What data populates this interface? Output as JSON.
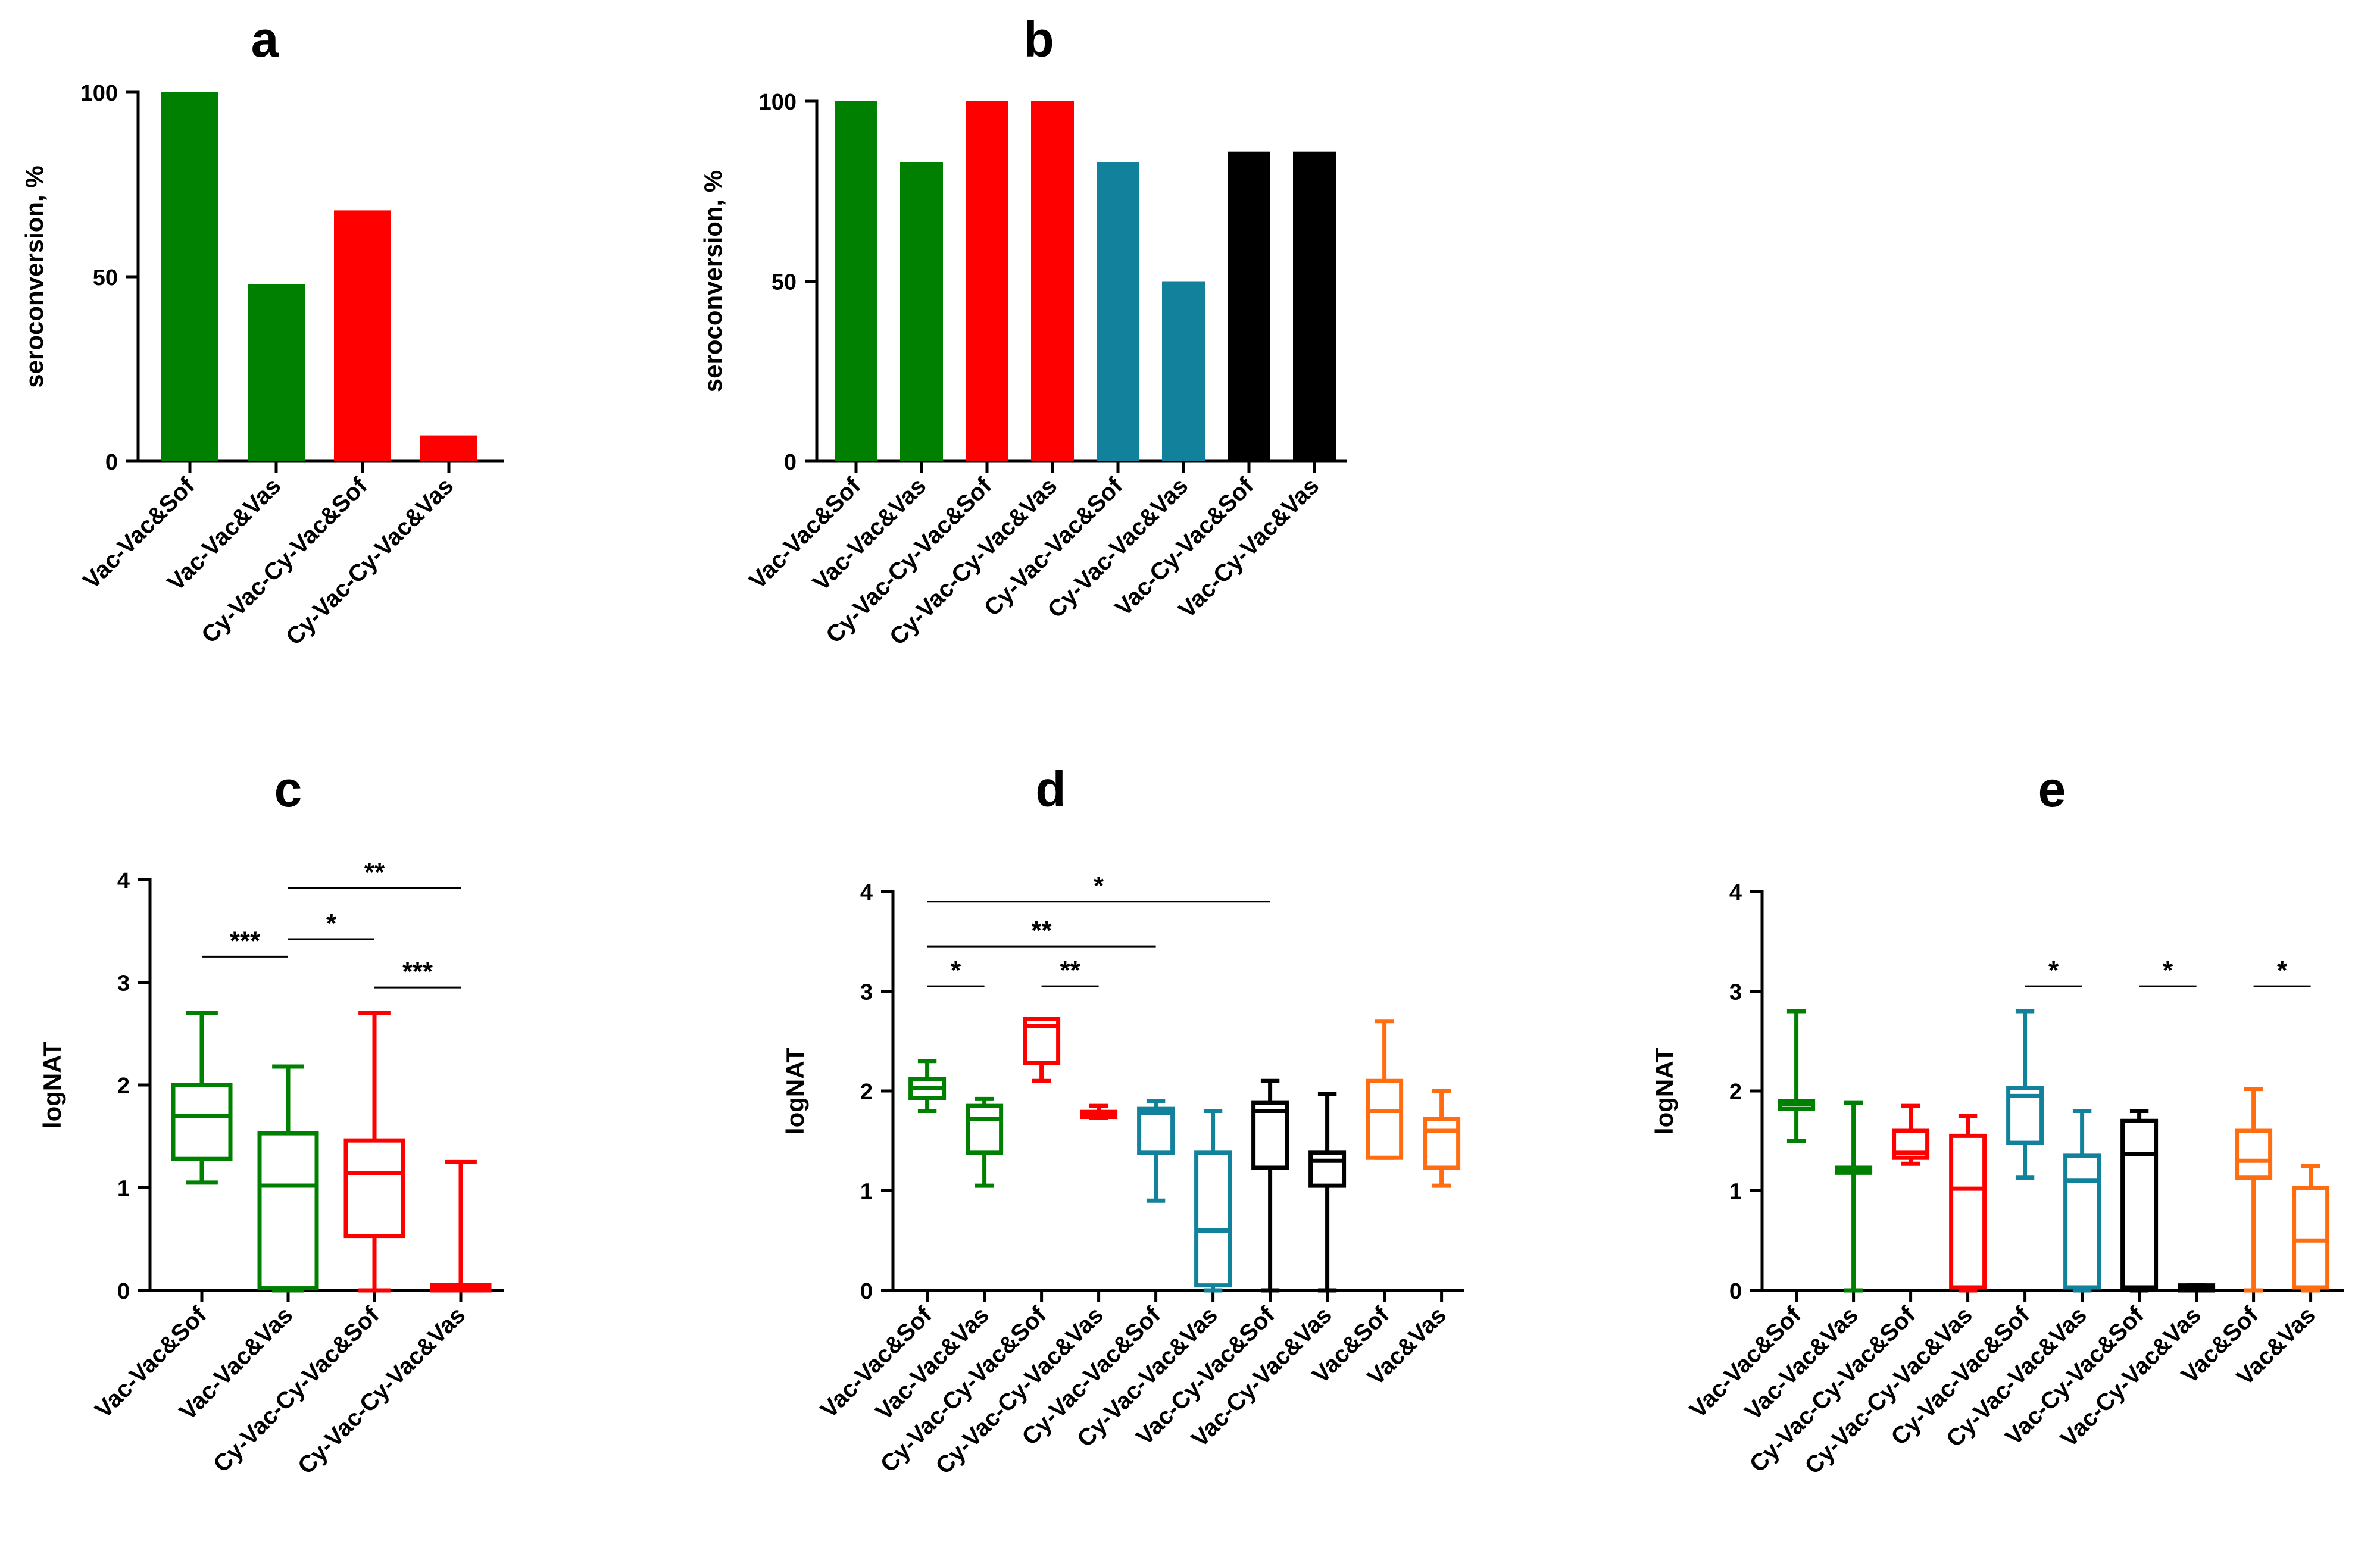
{
  "colors": {
    "green": "#008000",
    "red": "#ff0000",
    "teal": "#12819b",
    "black": "#000000",
    "orange": "#ff6d10"
  },
  "chart_data": [
    {
      "id": "a",
      "type": "bar",
      "panel_label": "a",
      "title": "",
      "xlabel": "",
      "ylabel": "seroconversion, %",
      "ylim": [
        0,
        100
      ],
      "yticks": [
        "0",
        "50",
        "100"
      ],
      "categories": [
        "Vac-Vac&Sof",
        "Vac-Vac&Vas",
        "Cy-Vac-Cy-Vac&Sof",
        "Cy-Vac-Cy-Vac&Vas"
      ],
      "values": [
        100,
        48,
        68,
        7
      ],
      "colors": [
        "green",
        "green",
        "red",
        "red"
      ],
      "grid": false
    },
    {
      "id": "b",
      "type": "bar",
      "panel_label": "b",
      "title": "",
      "xlabel": "",
      "ylabel": "seroconversion, %",
      "ylim": [
        0,
        100
      ],
      "yticks": [
        "0",
        "50",
        "100"
      ],
      "categories": [
        "Vac-Vac&Sof",
        "Vac-Vac&Vas",
        "Cy-Vac-Cy-Vac&Sof",
        "Cy-Vac-Cy-Vac&Vas",
        "Cy-Vac-Vac&Sof",
        "Cy-Vac-Vac&Vas",
        "Vac-Cy-Vac&Sof",
        "Vac-Cy-Vac&Vas"
      ],
      "values": [
        100,
        83,
        100,
        100,
        83,
        50,
        86,
        86
      ],
      "colors": [
        "green",
        "green",
        "red",
        "red",
        "teal",
        "teal",
        "black",
        "black"
      ],
      "grid": false
    },
    {
      "id": "c",
      "type": "box",
      "panel_label": "c",
      "title": "",
      "xlabel": "",
      "ylabel": "logNAT",
      "ylim": [
        0,
        4
      ],
      "yticks": [
        "0",
        "1",
        "2",
        "3",
        "4"
      ],
      "categories": [
        "Vac-Vac&Sof",
        "Vac-Vac&Vas",
        "Cy-Vac-Cy-Vac&Sof",
        "Cy-Vac-Cy-Vac&Vas"
      ],
      "colors": [
        "green",
        "green",
        "red",
        "red"
      ],
      "boxes": [
        {
          "min": 1.05,
          "q1": 1.28,
          "median": 1.7,
          "q3": 2.0,
          "max": 2.7
        },
        {
          "min": 0.0,
          "q1": 0.02,
          "median": 1.02,
          "q3": 1.53,
          "max": 2.18
        },
        {
          "min": 0.0,
          "q1": 0.53,
          "median": 1.14,
          "q3": 1.46,
          "max": 2.7
        },
        {
          "min": 0.0,
          "q1": 0.0,
          "median": 0.02,
          "q3": 0.05,
          "max": 1.25
        }
      ],
      "significance": [
        {
          "from": 0,
          "to": 1,
          "level": 3.25,
          "label": "***"
        },
        {
          "from": 1,
          "to": 2,
          "level": 3.42,
          "label": "*"
        },
        {
          "from": 1,
          "to": 3,
          "level": 3.92,
          "label": "**"
        },
        {
          "from": 2,
          "to": 3,
          "level": 2.95,
          "label": "***"
        }
      ],
      "grid": false
    },
    {
      "id": "d",
      "type": "box",
      "panel_label": "d",
      "title": "",
      "xlabel": "",
      "ylabel": "logNAT",
      "ylim": [
        0,
        4
      ],
      "yticks": [
        "0",
        "1",
        "2",
        "3",
        "4"
      ],
      "categories": [
        "Vac-Vac&Sof",
        "Vac-Vac&Vas",
        "Cy-Vac-Cy-Vac&Sof",
        "Cy-Vac-Cy-Vac&Vas",
        "Cy-Vac-Vac&Sof",
        "Cy-Vac-Vac&Vas",
        "Vac-Cy-Vac&Sof",
        "Vac-Cy-Vac&Vas",
        "Vac&Sof",
        "Vac&Vas"
      ],
      "colors": [
        "green",
        "green",
        "red",
        "red",
        "teal",
        "teal",
        "black",
        "black",
        "orange",
        "orange"
      ],
      "boxes": [
        {
          "min": 1.8,
          "q1": 1.93,
          "median": 2.03,
          "q3": 2.12,
          "max": 2.3
        },
        {
          "min": 1.05,
          "q1": 1.38,
          "median": 1.72,
          "q3": 1.85,
          "max": 1.92
        },
        {
          "min": 2.1,
          "q1": 2.28,
          "median": 2.65,
          "q3": 2.72,
          "max": 2.72
        },
        {
          "min": 1.73,
          "q1": 1.74,
          "median": 1.77,
          "q3": 1.79,
          "max": 1.85
        },
        {
          "min": 0.9,
          "q1": 1.38,
          "median": 1.78,
          "q3": 1.82,
          "max": 1.9
        },
        {
          "min": 0.0,
          "q1": 0.05,
          "median": 0.6,
          "q3": 1.38,
          "max": 1.8
        },
        {
          "min": 0.0,
          "q1": 1.23,
          "median": 1.8,
          "q3": 1.88,
          "max": 2.1
        },
        {
          "min": 0.0,
          "q1": 1.05,
          "median": 1.3,
          "q3": 1.38,
          "max": 1.97
        },
        {
          "min": 1.33,
          "q1": 1.33,
          "median": 1.8,
          "q3": 2.1,
          "max": 2.7
        },
        {
          "min": 1.05,
          "q1": 1.23,
          "median": 1.6,
          "q3": 1.72,
          "max": 2.0
        }
      ],
      "significance": [
        {
          "from": 0,
          "to": 1,
          "level": 3.05,
          "label": "*"
        },
        {
          "from": 0,
          "to": 4,
          "level": 3.45,
          "label": "**"
        },
        {
          "from": 0,
          "to": 6,
          "level": 3.9,
          "label": "*"
        },
        {
          "from": 2,
          "to": 3,
          "level": 3.05,
          "label": "**"
        }
      ],
      "grid": false
    },
    {
      "id": "e",
      "type": "box",
      "panel_label": "e",
      "title": "",
      "xlabel": "",
      "ylabel": "logNAT",
      "ylim": [
        0,
        4
      ],
      "yticks": [
        "0",
        "1",
        "2",
        "3",
        "4"
      ],
      "categories": [
        "Vac-Vac&Sof",
        "Vac-Vac&Vas",
        "Cy-Vac-Cy-Vac&Sof",
        "Cy-Vac-Cy-Vac&Vas",
        "Cy-Vac-Vac&Sof",
        "Cy-Vac-Vac&Vas",
        "Vac-Cy-Vac&Sof",
        "Vac-Cy-Vac&Vas",
        "Vac&Sof",
        "Vac&Vas"
      ],
      "colors": [
        "green",
        "green",
        "red",
        "red",
        "teal",
        "teal",
        "black",
        "black",
        "orange",
        "orange"
      ],
      "boxes": [
        {
          "min": 1.5,
          "q1": 1.82,
          "median": 1.87,
          "q3": 1.9,
          "max": 2.8
        },
        {
          "min": 0.0,
          "q1": 1.18,
          "median": 1.2,
          "q3": 1.23,
          "max": 1.88
        },
        {
          "min": 1.27,
          "q1": 1.33,
          "median": 1.38,
          "q3": 1.6,
          "max": 1.85
        },
        {
          "min": 0.0,
          "q1": 0.03,
          "median": 1.02,
          "q3": 1.55,
          "max": 1.75
        },
        {
          "min": 1.13,
          "q1": 1.48,
          "median": 1.95,
          "q3": 2.03,
          "max": 2.8
        },
        {
          "min": 0.0,
          "q1": 0.03,
          "median": 1.1,
          "q3": 1.35,
          "max": 1.8
        },
        {
          "min": 0.0,
          "q1": 0.03,
          "median": 1.37,
          "q3": 1.7,
          "max": 1.8
        },
        {
          "min": 0.0,
          "q1": 0.0,
          "median": 0.02,
          "q3": 0.05,
          "max": 0.05
        },
        {
          "min": 0.0,
          "q1": 1.13,
          "median": 1.3,
          "q3": 1.6,
          "max": 2.02
        },
        {
          "min": 0.0,
          "q1": 0.03,
          "median": 0.5,
          "q3": 1.03,
          "max": 1.25
        }
      ],
      "significance": [
        {
          "from": 4,
          "to": 5,
          "level": 3.05,
          "label": "*"
        },
        {
          "from": 6,
          "to": 7,
          "level": 3.05,
          "label": "*"
        },
        {
          "from": 8,
          "to": 9,
          "level": 3.05,
          "label": "*"
        }
      ],
      "grid": false
    }
  ]
}
